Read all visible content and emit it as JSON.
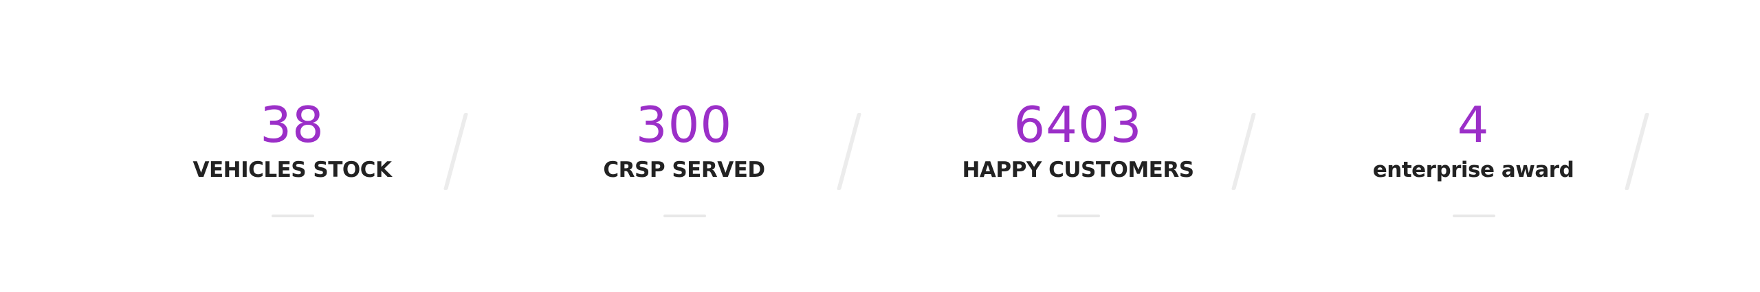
{
  "stats": [
    {
      "value": "38",
      "label": "VEHICLES STOCK"
    },
    {
      "value": "300",
      "label": "CRSP SERVED"
    },
    {
      "value": "6403",
      "label": "HAPPY CUSTOMERS"
    },
    {
      "value": "4",
      "label": "enterprise award"
    }
  ],
  "colors": {
    "number": "#9b2fc8",
    "label": "#222222",
    "separator": "#ececec",
    "background": "#ffffff"
  }
}
